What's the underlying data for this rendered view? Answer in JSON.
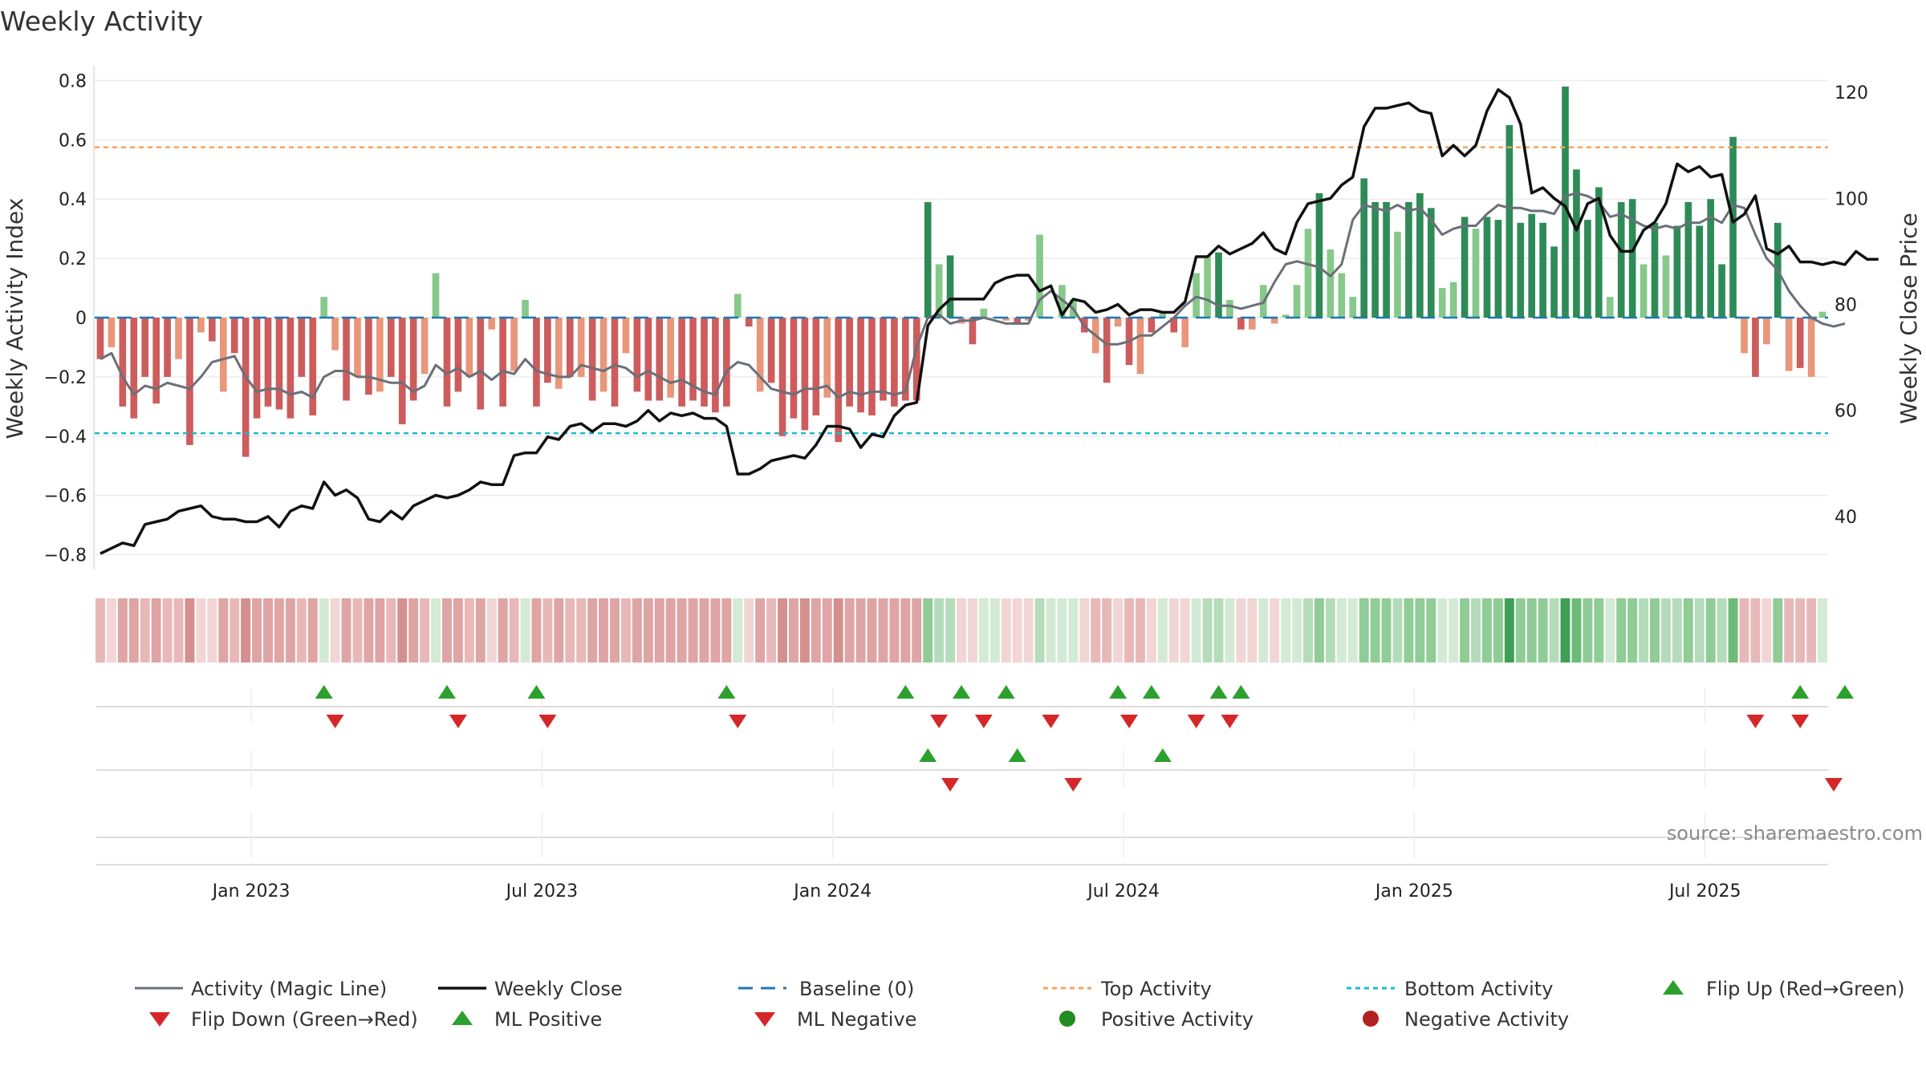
{
  "chart_data": {
    "type": "bar+line",
    "title": "Weekly Activity",
    "ylabel": "Weekly Activity Index",
    "y2label": "Weekly Close Price",
    "ylim": [
      -0.85,
      0.85
    ],
    "y2lim": [
      30,
      125
    ],
    "yticks": [
      0.8,
      0.6,
      0.4,
      0.2,
      0,
      -0.2,
      -0.4,
      -0.6,
      -0.8
    ],
    "ytick_labels": [
      "0.8",
      "0.6",
      "0.4",
      "0.2",
      "0",
      "−0.2",
      "−0.4",
      "−0.6",
      "−0.8"
    ],
    "y2ticks": [
      40,
      60,
      80,
      100,
      120
    ],
    "y2tick_labels": [
      "40",
      "60",
      "80",
      "100",
      "120"
    ],
    "xtick_labels": [
      "Jan 2023",
      "Jul 2023",
      "Jan 2024",
      "Jul 2024",
      "Jan 2025",
      "Jul 2025"
    ],
    "xtick_week_index": [
      14,
      40,
      66,
      92,
      118,
      144
    ],
    "top_activity": 0.575,
    "bottom_activity": -0.39,
    "source": "source: sharemaestro.com",
    "activity": [
      -0.14,
      -0.1,
      -0.3,
      -0.34,
      -0.2,
      -0.29,
      -0.2,
      -0.14,
      -0.43,
      -0.05,
      -0.08,
      -0.25,
      -0.12,
      -0.47,
      -0.34,
      -0.3,
      -0.31,
      -0.34,
      -0.2,
      -0.33,
      0.07,
      -0.11,
      -0.28,
      -0.2,
      -0.26,
      -0.25,
      -0.2,
      -0.36,
      -0.28,
      -0.19,
      0.15,
      -0.3,
      -0.25,
      -0.2,
      -0.31,
      -0.04,
      -0.3,
      -0.18,
      0.06,
      -0.3,
      -0.22,
      -0.24,
      -0.2,
      -0.2,
      -0.28,
      -0.25,
      -0.3,
      -0.12,
      -0.25,
      -0.28,
      -0.28,
      -0.27,
      -0.3,
      -0.28,
      -0.3,
      -0.32,
      -0.3,
      0.08,
      -0.03,
      -0.25,
      -0.22,
      -0.4,
      -0.34,
      -0.38,
      -0.33,
      -0.27,
      -0.42,
      -0.3,
      -0.32,
      -0.33,
      -0.28,
      -0.3,
      -0.28,
      -0.28,
      0.39,
      0.18,
      0.21,
      -0.02,
      -0.09,
      0.03,
      0.0,
      -0.01,
      -0.02,
      -0.01,
      0.28,
      0.0,
      0.11,
      0.06,
      -0.05,
      -0.12,
      -0.22,
      -0.03,
      -0.16,
      -0.19,
      -0.05,
      0.02,
      -0.05,
      -0.1,
      0.15,
      0.21,
      0.22,
      0.06,
      -0.04,
      -0.04,
      0.11,
      -0.02,
      0.01,
      0.11,
      0.3,
      0.42,
      0.23,
      0.15,
      0.07,
      0.47,
      0.39,
      0.39,
      0.29,
      0.39,
      0.42,
      0.37,
      0.1,
      0.12,
      0.34,
      0.3,
      0.34,
      0.33,
      0.65,
      0.32,
      0.35,
      0.32,
      0.24,
      0.78,
      0.5,
      0.33,
      0.44,
      0.07,
      0.39,
      0.4,
      0.18,
      0.32,
      0.21,
      0.31,
      0.39,
      0.31,
      0.4,
      0.18,
      0.61,
      -0.12,
      -0.2,
      -0.09,
      0.32,
      -0.18,
      -0.17,
      -0.2,
      0.02
    ],
    "flip_up_weeks": [
      20,
      31,
      39,
      56,
      72,
      77,
      81,
      91,
      94,
      100,
      102,
      152,
      156
    ],
    "flip_down_weeks": [
      21,
      32,
      40,
      57,
      75,
      79,
      85,
      92,
      98,
      101,
      148,
      152
    ],
    "ml_positive_weeks": [
      74,
      82,
      95
    ],
    "ml_negative_weeks": [
      76,
      87,
      155
    ],
    "series": [
      {
        "name": "Activity (Magic Line)",
        "color": "#6b6f78",
        "values": [
          -0.14,
          -0.12,
          -0.2,
          -0.26,
          -0.23,
          -0.24,
          -0.22,
          -0.23,
          -0.24,
          -0.2,
          -0.15,
          -0.14,
          -0.13,
          -0.2,
          -0.25,
          -0.24,
          -0.24,
          -0.26,
          -0.25,
          -0.27,
          -0.2,
          -0.18,
          -0.18,
          -0.2,
          -0.2,
          -0.21,
          -0.22,
          -0.22,
          -0.25,
          -0.23,
          -0.16,
          -0.19,
          -0.17,
          -0.2,
          -0.18,
          -0.21,
          -0.18,
          -0.19,
          -0.14,
          -0.18,
          -0.19,
          -0.2,
          -0.2,
          -0.16,
          -0.17,
          -0.18,
          -0.16,
          -0.17,
          -0.2,
          -0.18,
          -0.2,
          -0.22,
          -0.21,
          -0.23,
          -0.25,
          -0.26,
          -0.18,
          -0.15,
          -0.16,
          -0.2,
          -0.24,
          -0.25,
          -0.26,
          -0.24,
          -0.24,
          -0.23,
          -0.27,
          -0.25,
          -0.26,
          -0.25,
          -0.25,
          -0.26,
          -0.25,
          -0.1,
          0.0,
          0.01,
          -0.02,
          -0.01,
          -0.01,
          0.0,
          -0.01,
          -0.02,
          -0.02,
          -0.02,
          0.06,
          0.09,
          0.06,
          0.03,
          -0.03,
          -0.06,
          -0.09,
          -0.09,
          -0.08,
          -0.06,
          -0.06,
          -0.03,
          0.0,
          0.04,
          0.07,
          0.06,
          0.04,
          0.04,
          0.03,
          0.04,
          0.05,
          0.12,
          0.18,
          0.19,
          0.18,
          0.17,
          0.14,
          0.18,
          0.33,
          0.38,
          0.37,
          0.36,
          0.38,
          0.36,
          0.37,
          0.33,
          0.28,
          0.3,
          0.31,
          0.31,
          0.35,
          0.38,
          0.37,
          0.37,
          0.36,
          0.36,
          0.35,
          0.41,
          0.42,
          0.41,
          0.39,
          0.34,
          0.35,
          0.33,
          0.31,
          0.3,
          0.31,
          0.3,
          0.32,
          0.32,
          0.34,
          0.32,
          0.38,
          0.37,
          0.28,
          0.2,
          0.16,
          0.09,
          0.04,
          0.0,
          -0.02,
          -0.03,
          -0.02
        ]
      },
      {
        "name": "Weekly Close",
        "color": "#111111",
        "axis": "right",
        "values": [
          33,
          34,
          35,
          34.5,
          38.5,
          39,
          39.5,
          41,
          41.5,
          42,
          40,
          39.5,
          39.5,
          39,
          39,
          40,
          38,
          41,
          42,
          41.5,
          46.5,
          44,
          45,
          43.5,
          39.5,
          39,
          41,
          39.5,
          42,
          43,
          44,
          43.5,
          44,
          45,
          46.5,
          46,
          46,
          51.5,
          52,
          52,
          55,
          54.5,
          57,
          57.5,
          56,
          57.5,
          57.5,
          57,
          58,
          60,
          58,
          59.5,
          59,
          59.5,
          58.5,
          58.5,
          57,
          48,
          48,
          49,
          50.5,
          51,
          51.5,
          51,
          53.5,
          57,
          57,
          56.5,
          53,
          55.5,
          55,
          59,
          61,
          61.5,
          76,
          79,
          81,
          81,
          81,
          81,
          84,
          85,
          85.5,
          85.5,
          82.5,
          83.5,
          78,
          81,
          80.5,
          78.5,
          79,
          80,
          78,
          79,
          79,
          78.5,
          78.5,
          80.5,
          89,
          89,
          91,
          89.5,
          90.5,
          91.5,
          93.5,
          90.5,
          89.5,
          95.5,
          99,
          99.5,
          100,
          102.5,
          104,
          113.5,
          117,
          117,
          117.5,
          118,
          116.5,
          116,
          108,
          110,
          108,
          110,
          116.5,
          120.5,
          119,
          114,
          101,
          102,
          100,
          98.5,
          94,
          99,
          100,
          93,
          90,
          90,
          94,
          95.5,
          99,
          106.5,
          105,
          106,
          104,
          104.5,
          95.5,
          97,
          100.5,
          90.5,
          89.5,
          91,
          88,
          88,
          87.5,
          88,
          87.5,
          90,
          88.5,
          88.5
        ]
      }
    ]
  },
  "legend": {
    "magic_line": "Activity (Magic Line)",
    "weekly_close": "Weekly Close",
    "baseline": "Baseline (0)",
    "top_activity": "Top Activity",
    "bottom_activity": "Bottom Activity",
    "flip_up": "Flip Up (Red→Green)",
    "flip_down": "Flip Down (Green→Red)",
    "ml_positive": "ML Positive",
    "ml_negative": "ML Negative",
    "positive_activity": "Positive Activity",
    "negative_activity": "Negative Activity"
  },
  "colors": {
    "pos_strong": "#2e8b57",
    "pos_weak": "#86c98a",
    "neg_strong": "#cd5c5c",
    "neg_weak": "#e9967a",
    "baseline": "#1f77b4",
    "top_line": "#f4a460",
    "bottom_line": "#17becf",
    "marker_up": "#2ca02c",
    "marker_down": "#d62728",
    "dot_pos": "#228b22",
    "dot_neg": "#b22222",
    "magic_line": "#6b6f78",
    "close_line": "#111111"
  }
}
